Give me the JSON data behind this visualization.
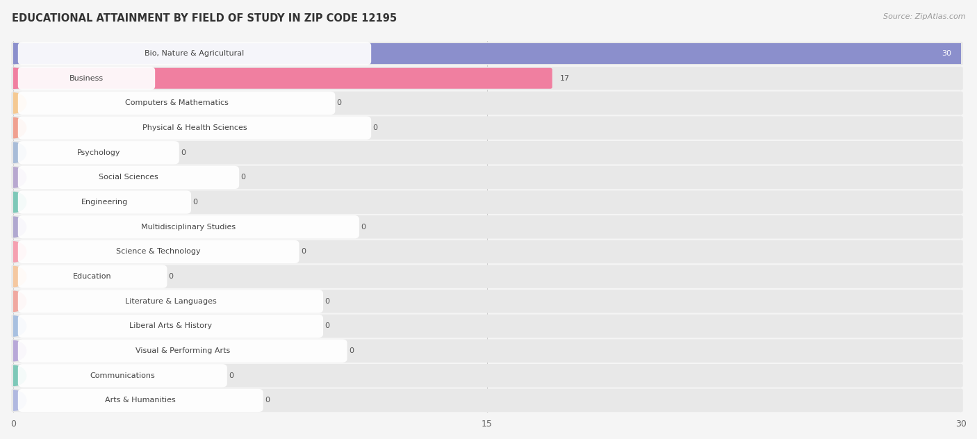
{
  "title": "EDUCATIONAL ATTAINMENT BY FIELD OF STUDY IN ZIP CODE 12195",
  "source": "Source: ZipAtlas.com",
  "categories": [
    "Bio, Nature & Agricultural",
    "Business",
    "Computers & Mathematics",
    "Physical & Health Sciences",
    "Psychology",
    "Social Sciences",
    "Engineering",
    "Multidisciplinary Studies",
    "Science & Technology",
    "Education",
    "Literature & Languages",
    "Liberal Arts & History",
    "Visual & Performing Arts",
    "Communications",
    "Arts & Humanities"
  ],
  "values": [
    30,
    17,
    0,
    0,
    0,
    0,
    0,
    0,
    0,
    0,
    0,
    0,
    0,
    0,
    0
  ],
  "bar_colors": [
    "#8b8fcc",
    "#f07fa0",
    "#f5c992",
    "#f0a090",
    "#a8bcd8",
    "#b8a8d0",
    "#7dc8b8",
    "#b0a8d0",
    "#f5a0b0",
    "#f5c8a0",
    "#f0a8a0",
    "#a8c0e0",
    "#b8a8d8",
    "#7dc8b8",
    "#b0b8e0"
  ],
  "xlim": [
    0,
    30
  ],
  "xticks": [
    0,
    15,
    30
  ],
  "background_color": "#f5f5f5",
  "row_bg_color": "#e8e8e8",
  "title_fontsize": 10.5,
  "label_fontsize": 8,
  "value_fontsize": 8
}
